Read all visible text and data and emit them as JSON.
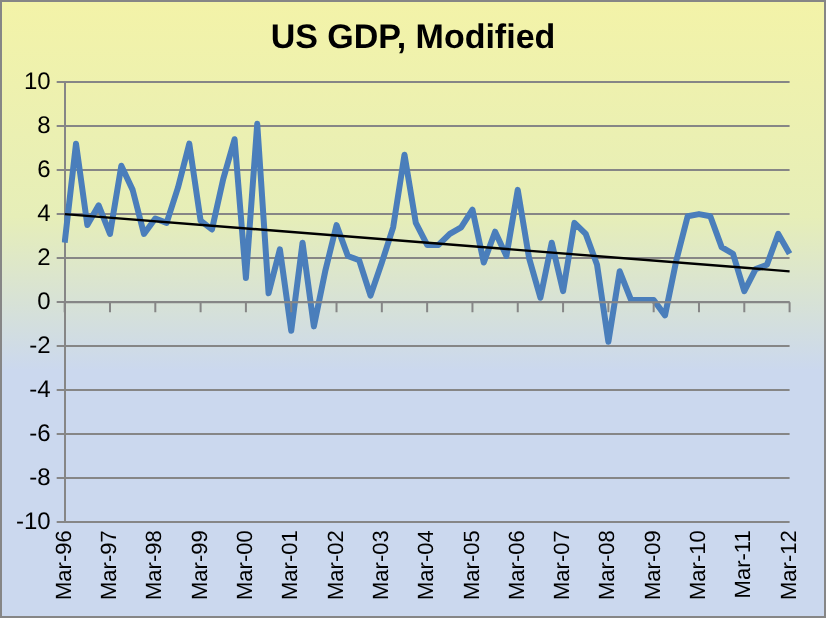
{
  "chart_data": {
    "type": "line",
    "title": "US GDP, Modified",
    "categories": [
      "Mar-96",
      null,
      null,
      null,
      "Mar-97",
      null,
      null,
      null,
      "Mar-98",
      null,
      null,
      null,
      "Mar-99",
      null,
      null,
      null,
      "Mar-00",
      null,
      null,
      null,
      "Mar-01",
      null,
      null,
      null,
      "Mar-02",
      null,
      null,
      null,
      "Mar-03",
      null,
      null,
      null,
      "Mar-04",
      null,
      null,
      null,
      "Mar-05",
      null,
      null,
      null,
      "Mar-06",
      null,
      null,
      null,
      "Mar-07",
      null,
      null,
      null,
      "Mar-08",
      null,
      null,
      null,
      "Mar-09",
      null,
      null,
      null,
      "Mar-10",
      null,
      null,
      null,
      "Mar-11",
      null,
      null,
      null,
      "Mar-12"
    ],
    "series": [
      {
        "color": "#4a7ebb",
        "values": [
          2.7,
          7.2,
          3.5,
          4.4,
          3.1,
          6.2,
          5.1,
          3.1,
          3.8,
          3.6,
          5.2,
          7.2,
          3.7,
          3.3,
          5.6,
          7.4,
          1.1,
          8.1,
          0.4,
          2.4,
          -1.3,
          2.7,
          -1.1,
          1.4,
          3.5,
          2.1,
          1.9,
          0.3,
          1.8,
          3.4,
          6.7,
          3.6,
          2.6,
          2.6,
          3.1,
          3.4,
          4.2,
          1.8,
          3.2,
          2.1,
          5.1,
          2.0,
          0.2,
          2.7,
          0.5,
          3.6,
          3.1,
          1.7,
          -1.8,
          1.4,
          0.1,
          0.1,
          0.1,
          -0.6,
          1.9,
          3.9,
          4.0,
          3.9,
          2.5,
          2.2,
          0.5,
          1.5,
          1.7,
          3.1,
          2.2
        ]
      },
      {
        "type": "line",
        "color": "#000000",
        "values": [
          4.0,
          null,
          null,
          null,
          null,
          null,
          null,
          null,
          null,
          null,
          null,
          null,
          null,
          null,
          null,
          null,
          null,
          null,
          null,
          null,
          null,
          null,
          null,
          null,
          null,
          null,
          null,
          null,
          null,
          null,
          null,
          null,
          null,
          null,
          null,
          null,
          null,
          null,
          null,
          null,
          null,
          null,
          null,
          null,
          null,
          null,
          null,
          null,
          null,
          null,
          null,
          null,
          null,
          null,
          null,
          null,
          null,
          null,
          null,
          null,
          null,
          null,
          null,
          null,
          1.4
        ]
      }
    ],
    "ylim": [
      -10,
      10
    ],
    "yticks": [
      -10,
      -8,
      -6,
      -4,
      -2,
      0,
      2,
      4,
      6,
      8,
      10
    ],
    "grid": "y",
    "legend": false,
    "marker": "none"
  }
}
